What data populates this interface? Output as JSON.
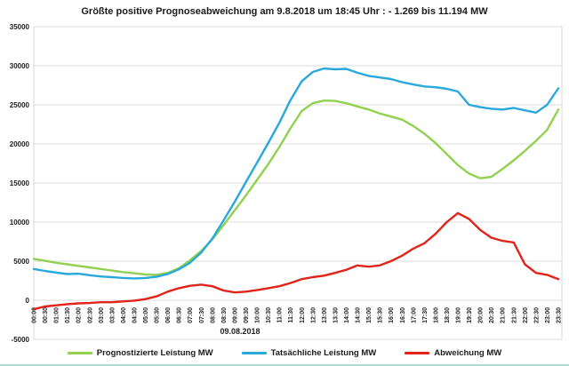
{
  "title": "Größte positive Prognoseabweichung  am 9.8.2018 um 18:45 Uhr : - 1.269 bis 11.194 MW",
  "colors": {
    "forecast_green": "#92D050",
    "actual_cyan": "#29A8DC",
    "deviation_red": "#E2231A",
    "gridline": "#DBDBDB",
    "axis_text": "#1f1f1f",
    "title_text": "#1a1a1a"
  },
  "chart_data": {
    "type": "line",
    "title": "Größte positive Prognoseabweichung  am 9.8.2018 um 18:45 Uhr : - 1.269 bis 11.194 MW",
    "date_label": "09.08.2018",
    "ylim": [
      -5000,
      35000
    ],
    "ytick_step": 5000,
    "y_ticks": [
      35000,
      30000,
      25000,
      20000,
      15000,
      10000,
      5000,
      0,
      -5000
    ],
    "grid": true,
    "legend_position": "bottom",
    "categories": [
      "00:00",
      "00:30",
      "01:00",
      "01:30",
      "02:00",
      "02:30",
      "03:00",
      "03:30",
      "04:00",
      "04:30",
      "05:00",
      "05:30",
      "06:00",
      "06:30",
      "07:00",
      "07:30",
      "08:00",
      "08:30",
      "09:00",
      "09:30",
      "10:00",
      "10:30",
      "11:00",
      "11:30",
      "12:00",
      "12:30",
      "13:00",
      "13:30",
      "14:00",
      "14:30",
      "15:00",
      "15:30",
      "16:00",
      "16:30",
      "17:00",
      "17:30",
      "18:00",
      "18:30",
      "19:00",
      "19:30",
      "20:00",
      "20:30",
      "21:00",
      "21:30",
      "22:00",
      "22:30",
      "23:00",
      "23:30"
    ],
    "series": [
      {
        "name": "Prognostizierte Leistung MW",
        "color": "#92D050",
        "values": [
          5300,
          5050,
          4800,
          4600,
          4400,
          4200,
          4000,
          3800,
          3600,
          3450,
          3300,
          3250,
          3500,
          4100,
          5100,
          6300,
          7800,
          9600,
          11500,
          13400,
          15400,
          17400,
          19600,
          22000,
          24200,
          25200,
          25550,
          25500,
          25200,
          24800,
          24400,
          23900,
          23500,
          23100,
          22300,
          21300,
          20100,
          18700,
          17300,
          16200,
          15600,
          15800,
          16800,
          17900,
          19100,
          20400,
          21800,
          24400
        ]
      },
      {
        "name": "Tatsächliche Leistung MW",
        "color": "#29A8DC",
        "values": [
          4000,
          3750,
          3550,
          3350,
          3400,
          3200,
          3050,
          2950,
          2850,
          2800,
          2850,
          3000,
          3350,
          3950,
          4800,
          6100,
          7900,
          10200,
          12600,
          15100,
          17600,
          20100,
          22700,
          25600,
          28000,
          29200,
          29650,
          29550,
          29600,
          29100,
          28700,
          28500,
          28300,
          27900,
          27600,
          27350,
          27250,
          27050,
          26700,
          25000,
          24700,
          24500,
          24400,
          24600,
          24300,
          24000,
          25000,
          27100
        ]
      },
      {
        "name": "Abweichung MW",
        "color": "#E2231A",
        "values": [
          -1150,
          -800,
          -650,
          -500,
          -400,
          -350,
          -250,
          -250,
          -150,
          -50,
          150,
          500,
          1100,
          1550,
          1850,
          2000,
          1800,
          1250,
          1000,
          1100,
          1300,
          1550,
          1800,
          2200,
          2700,
          2950,
          3150,
          3500,
          3900,
          4450,
          4300,
          4450,
          5000,
          5700,
          6600,
          7300,
          8500,
          10000,
          11150,
          10400,
          9000,
          8000,
          7600,
          7400,
          4600,
          3500,
          3250,
          2700
        ]
      }
    ]
  }
}
